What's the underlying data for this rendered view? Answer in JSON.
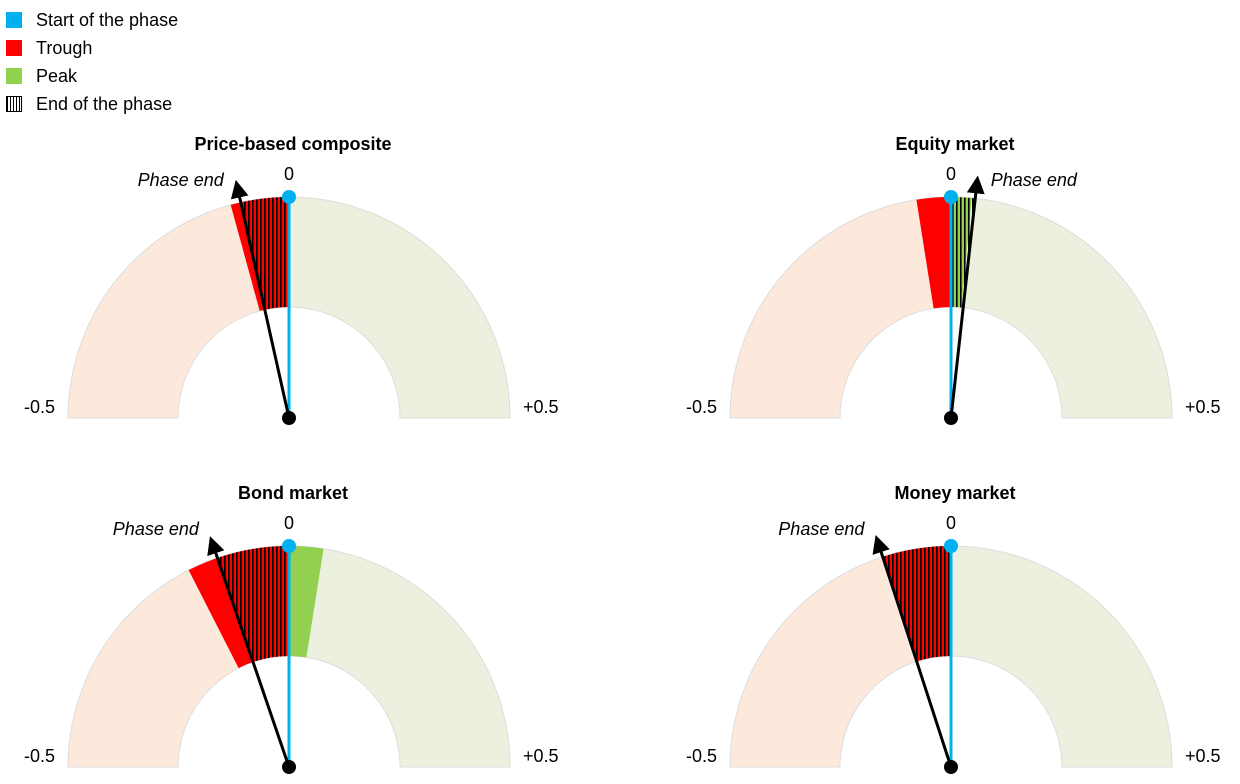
{
  "chart_data": {
    "type": "gauge",
    "range": [
      -0.5,
      0.5
    ],
    "legend": [
      {
        "label": "Start of the phase",
        "color": "#00b0f0",
        "kind": "start"
      },
      {
        "label": "Trough",
        "color": "#ff0000",
        "kind": "trough"
      },
      {
        "label": "Peak",
        "color": "#92d050",
        "kind": "peak"
      },
      {
        "label": "End of the phase",
        "color": "#000000",
        "kind": "hatch"
      }
    ],
    "tick_labels": {
      "min": "-0.5",
      "mid": "0",
      "max": "+0.5"
    },
    "annotation": "Phase end",
    "background_colors": {
      "negative": "#fce9dc",
      "positive": "#ebf1de"
    },
    "gauges": [
      {
        "title": "Price-based composite",
        "start": 0,
        "trough": -0.085,
        "peak": 0,
        "phase_end": -0.07
      },
      {
        "title": "Equity market",
        "start": 0,
        "trough": -0.05,
        "peak": 0.03,
        "phase_end": 0.035
      },
      {
        "title": "Bond market",
        "start": 0,
        "trough": -0.15,
        "peak": 0.05,
        "phase_end": -0.105
      },
      {
        "title": "Money market",
        "start": 0,
        "trough": -0.1,
        "peak": 0,
        "phase_end": -0.1
      }
    ]
  }
}
